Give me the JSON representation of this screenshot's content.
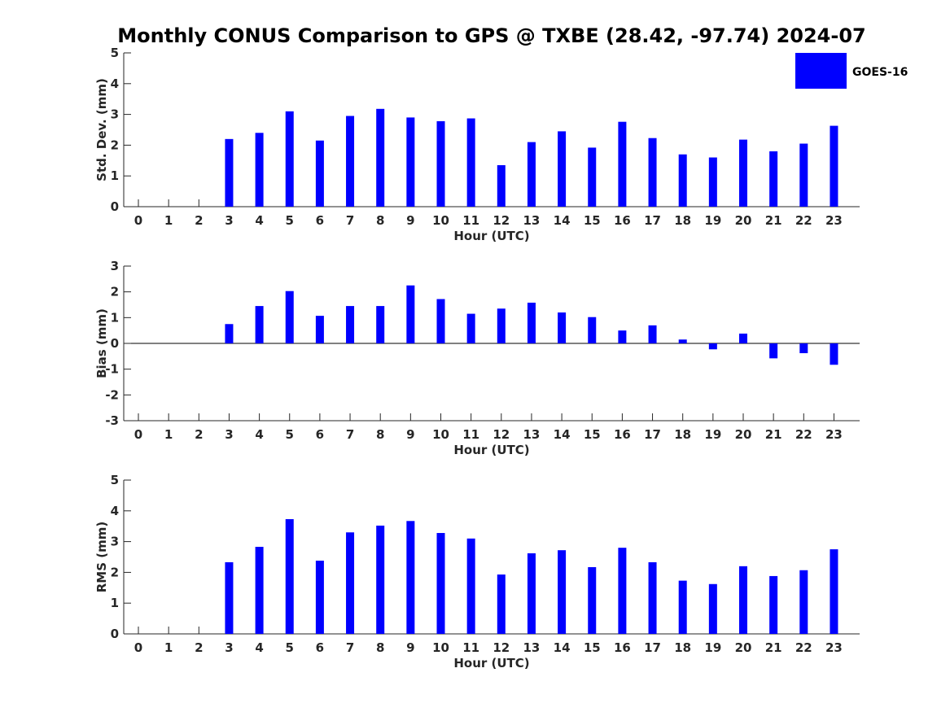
{
  "chart_data": {
    "title": "Monthly CONUS Comparison to GPS @ TXBE (28.42, -97.74) 2024-07",
    "legend": {
      "position": "top-right",
      "entries": [
        {
          "name": "GOES-16",
          "color": "#0000ff"
        }
      ]
    },
    "panels": [
      {
        "type": "bar",
        "xlabel": "Hour (UTC)",
        "ylabel": "Std. Dev. (mm)",
        "ylim": [
          0,
          5
        ],
        "yticks": [
          0,
          1,
          2,
          3,
          4,
          5
        ],
        "categories": [
          "0",
          "1",
          "2",
          "3",
          "4",
          "5",
          "6",
          "7",
          "8",
          "9",
          "10",
          "11",
          "12",
          "13",
          "14",
          "15",
          "16",
          "17",
          "18",
          "19",
          "20",
          "21",
          "22",
          "23"
        ],
        "series": [
          {
            "name": "GOES-16",
            "color": "#0000ff",
            "values": [
              null,
              null,
              null,
              2.2,
              2.4,
              3.1,
              2.15,
              2.95,
              3.18,
              2.9,
              2.78,
              2.87,
              1.35,
              2.1,
              2.45,
              1.92,
              2.76,
              2.23,
              1.7,
              1.6,
              2.18,
              1.8,
              2.05,
              2.63
            ]
          }
        ]
      },
      {
        "type": "bar",
        "xlabel": "Hour (UTC)",
        "ylabel": "Bias (mm)",
        "ylim": [
          -3,
          3
        ],
        "yticks": [
          -3,
          -2,
          -1,
          0,
          1,
          2,
          3
        ],
        "categories": [
          "0",
          "1",
          "2",
          "3",
          "4",
          "5",
          "6",
          "7",
          "8",
          "9",
          "10",
          "11",
          "12",
          "13",
          "14",
          "15",
          "16",
          "17",
          "18",
          "19",
          "20",
          "21",
          "22",
          "23"
        ],
        "series": [
          {
            "name": "GOES-16",
            "color": "#0000ff",
            "values": [
              null,
              null,
              null,
              0.75,
              1.45,
              2.03,
              1.07,
              1.45,
              1.45,
              2.25,
              1.72,
              1.15,
              1.35,
              1.58,
              1.2,
              1.02,
              0.5,
              0.7,
              0.15,
              -0.23,
              0.38,
              -0.58,
              -0.38,
              -0.83
            ]
          }
        ]
      },
      {
        "type": "bar",
        "xlabel": "Hour (UTC)",
        "ylabel": "RMS (mm)",
        "ylim": [
          0,
          5
        ],
        "yticks": [
          0,
          1,
          2,
          3,
          4,
          5
        ],
        "categories": [
          "0",
          "1",
          "2",
          "3",
          "4",
          "5",
          "6",
          "7",
          "8",
          "9",
          "10",
          "11",
          "12",
          "13",
          "14",
          "15",
          "16",
          "17",
          "18",
          "19",
          "20",
          "21",
          "22",
          "23"
        ],
        "series": [
          {
            "name": "GOES-16",
            "color": "#0000ff",
            "values": [
              null,
              null,
              null,
              2.33,
              2.83,
              3.73,
              2.38,
              3.3,
              3.52,
              3.67,
              3.28,
              3.1,
              1.93,
              2.62,
              2.72,
              2.17,
              2.8,
              2.33,
              1.73,
              1.62,
              2.2,
              1.88,
              2.07,
              2.75
            ]
          }
        ]
      }
    ]
  }
}
